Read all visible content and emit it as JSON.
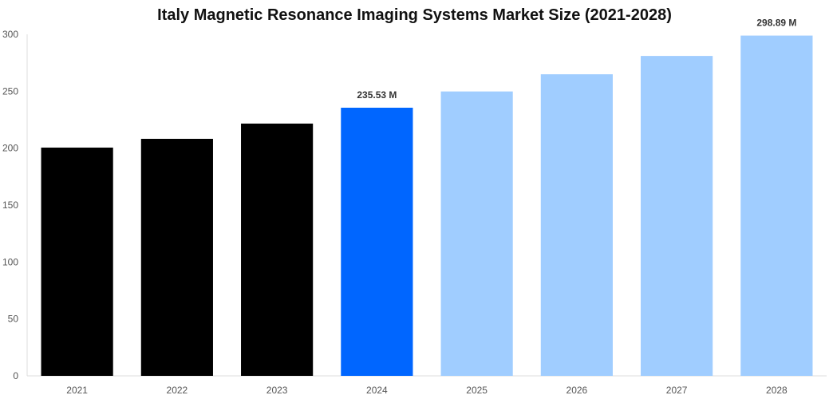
{
  "title": "Italy Magnetic Resonance Imaging Systems Market Size (2021-2028)",
  "chart_data": {
    "type": "bar",
    "title": "Italy Magnetic Resonance Imaging Systems Market Size (2021-2028)",
    "xlabel": "",
    "ylabel": "",
    "categories": [
      "2021",
      "2022",
      "2023",
      "2024",
      "2025",
      "2026",
      "2027",
      "2028"
    ],
    "values": [
      200.5,
      208.2,
      221.6,
      235.53,
      249.8,
      264.9,
      281.0,
      298.89
    ],
    "bar_colors": [
      "#000000",
      "#000000",
      "#000000",
      "#0066ff",
      "#a0cdff",
      "#a0cdff",
      "#a0cdff",
      "#a0cdff"
    ],
    "ylim": [
      0,
      300
    ],
    "yticks": [
      "0",
      "50",
      "100",
      "150",
      "200",
      "250",
      "300"
    ],
    "data_labels": [
      {
        "category": "2024",
        "text": "235.53 M"
      },
      {
        "category": "2028",
        "text": "298.89 M"
      }
    ],
    "grid": false,
    "legend": "none"
  }
}
